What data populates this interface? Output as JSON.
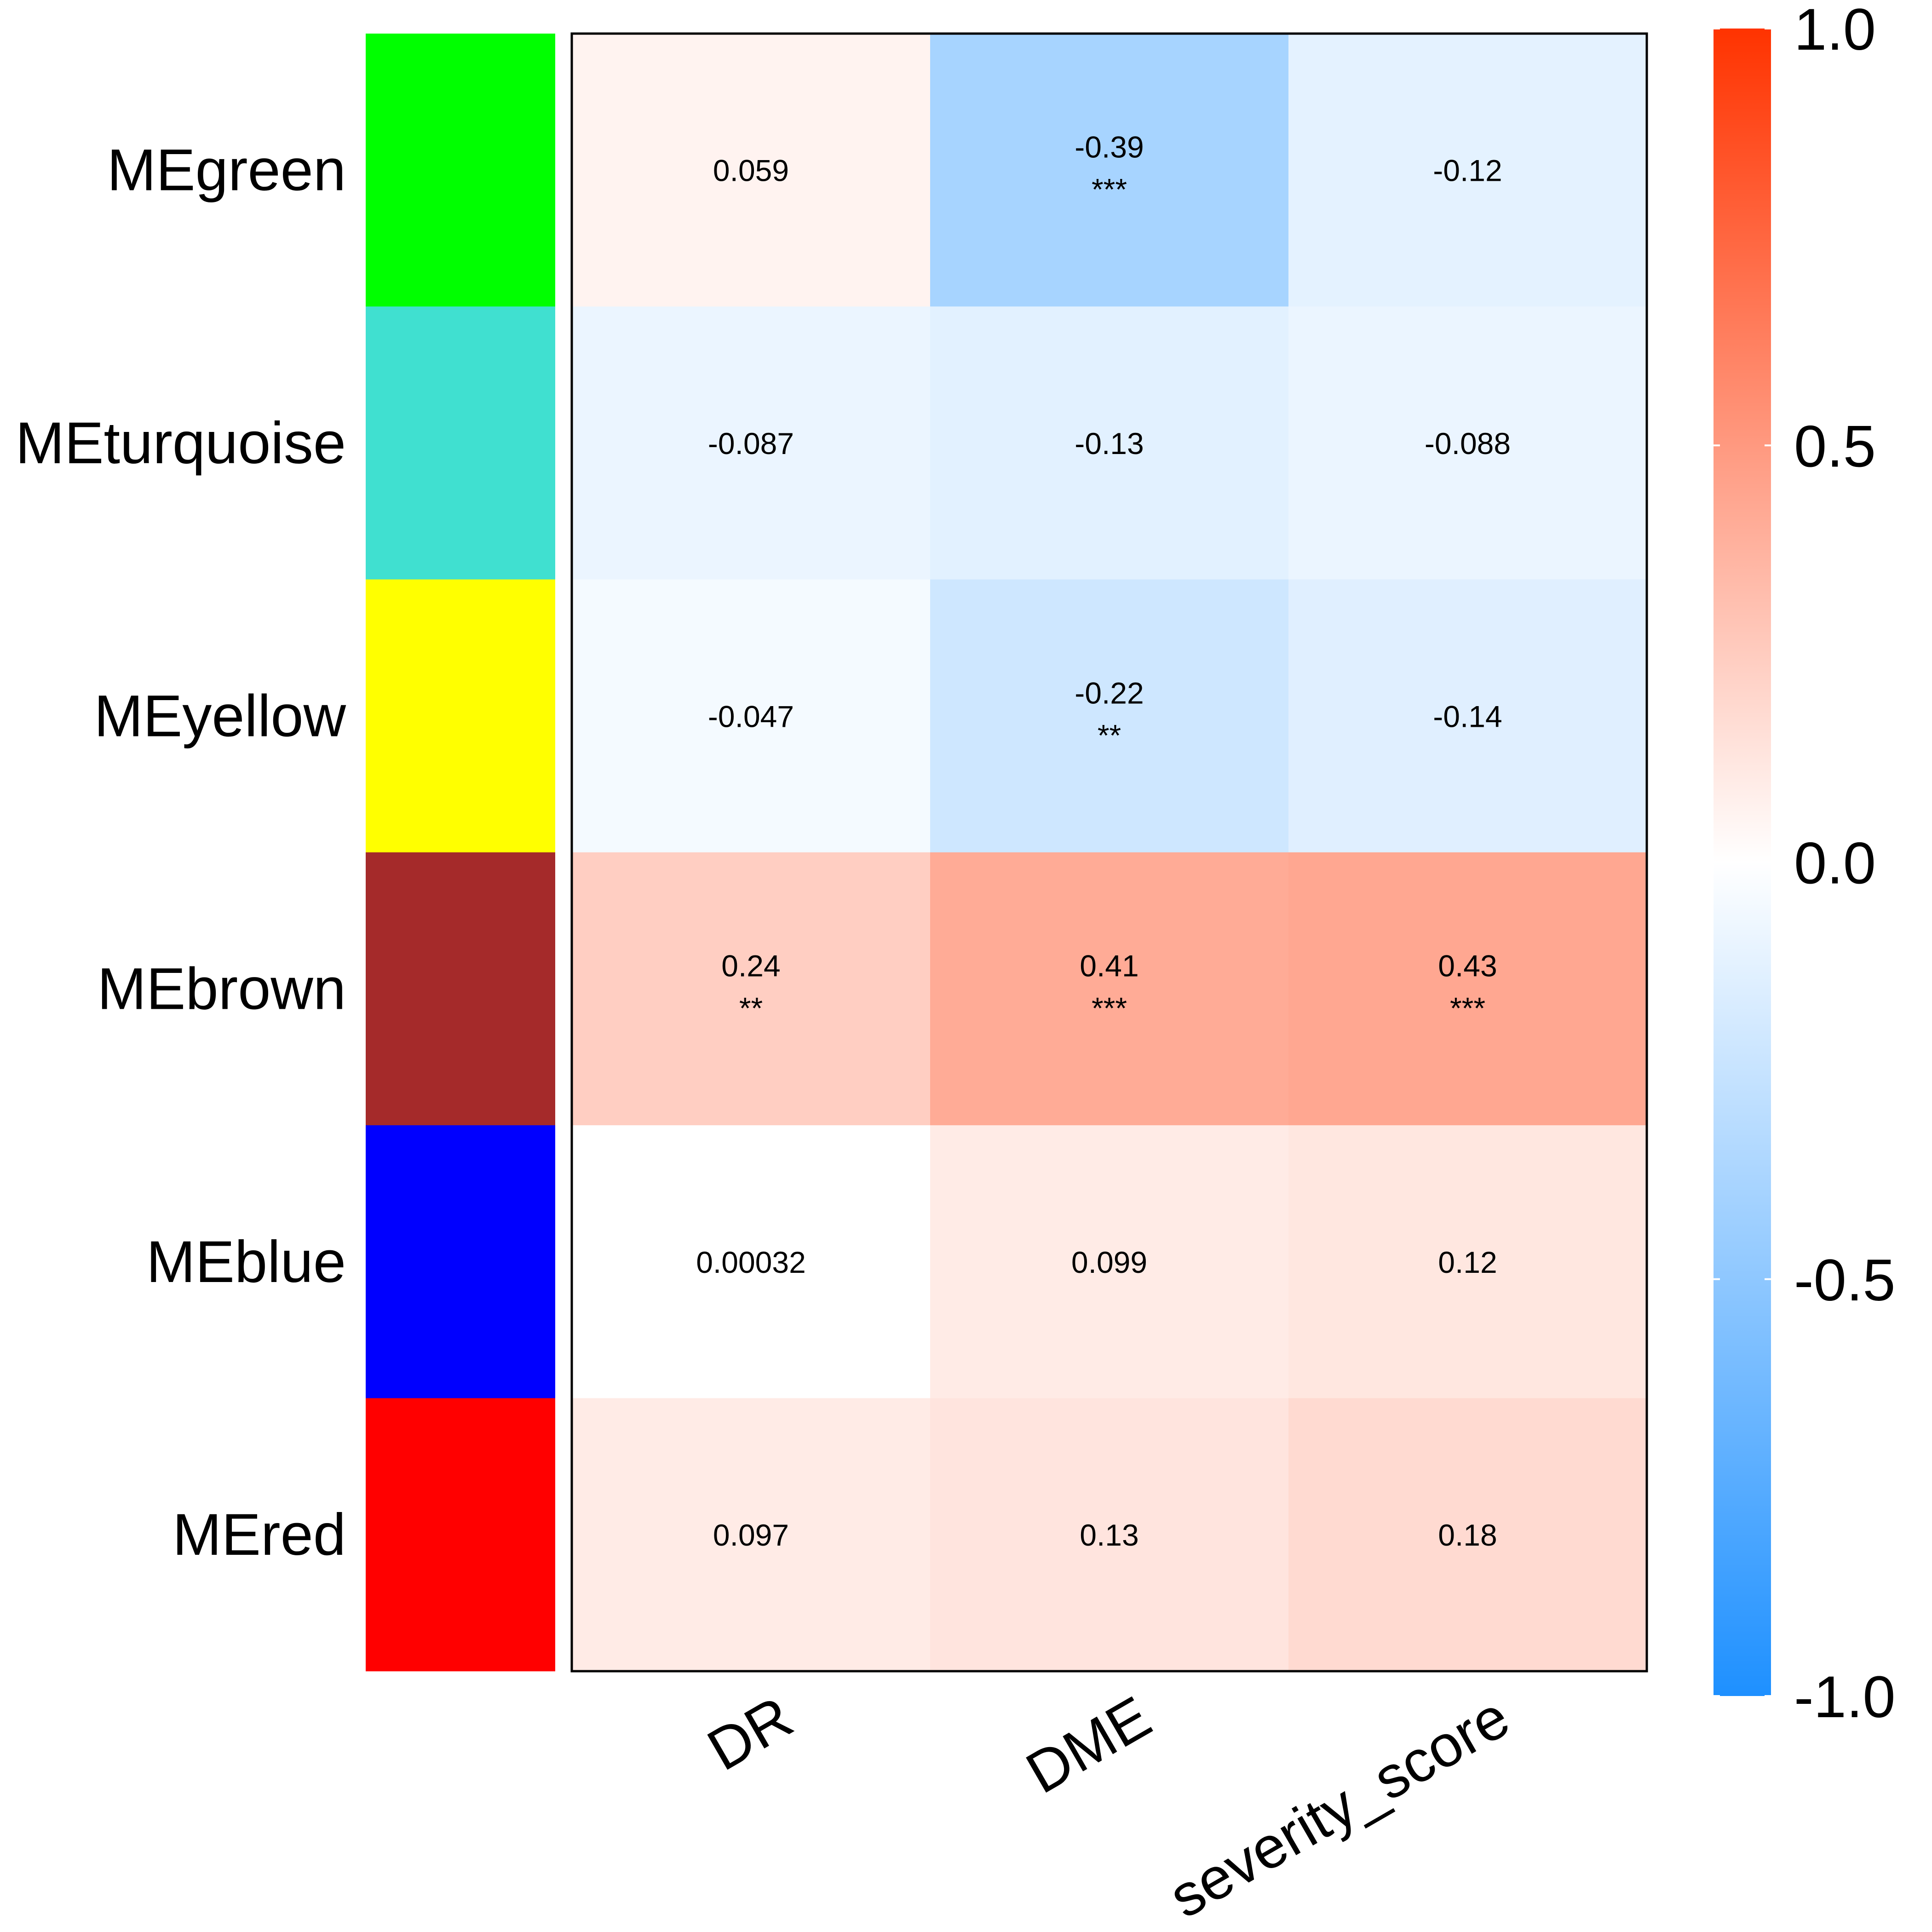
{
  "chart_data": {
    "type": "heatmap",
    "rows": [
      "MEgreen",
      "MEturquoise",
      "MEyellow",
      "MEbrown",
      "MEblue",
      "MEred"
    ],
    "row_colors": [
      "#00ff00",
      "#40e0d0",
      "#ffff00",
      "#a52a2a",
      "#0000ff",
      "#ff0000"
    ],
    "columns": [
      "DR",
      "DME",
      "severity_score"
    ],
    "values": [
      [
        0.059,
        -0.39,
        -0.12
      ],
      [
        -0.087,
        -0.13,
        -0.088
      ],
      [
        -0.047,
        -0.22,
        -0.14
      ],
      [
        0.24,
        0.41,
        0.43
      ],
      [
        0.00032,
        0.099,
        0.12
      ],
      [
        0.097,
        0.13,
        0.18
      ]
    ],
    "value_labels": [
      [
        "0.059",
        "-0.39",
        "-0.12"
      ],
      [
        "-0.087",
        "-0.13",
        "-0.088"
      ],
      [
        "-0.047",
        "-0.22",
        "-0.14"
      ],
      [
        "0.24",
        "0.41",
        "0.43"
      ],
      [
        "0.00032",
        "0.099",
        "0.12"
      ],
      [
        "0.097",
        "0.13",
        "0.18"
      ]
    ],
    "significance": [
      [
        "",
        "***",
        ""
      ],
      [
        "",
        "",
        ""
      ],
      [
        "",
        "**",
        ""
      ],
      [
        "**",
        "***",
        "***"
      ],
      [
        "",
        "",
        ""
      ],
      [
        "",
        "",
        ""
      ]
    ],
    "color_scale": {
      "min": -1.0,
      "max": 1.0,
      "low_color": "#1e90ff",
      "mid_color": "#ffffff",
      "high_color": "#ff3300",
      "tick_labels": [
        "1.0",
        "0.5",
        "0.0",
        "-0.5",
        "-1.0"
      ],
      "tick_values": [
        1.0,
        0.5,
        0.0,
        -0.5,
        -1.0
      ]
    },
    "legend_placement": "right"
  }
}
